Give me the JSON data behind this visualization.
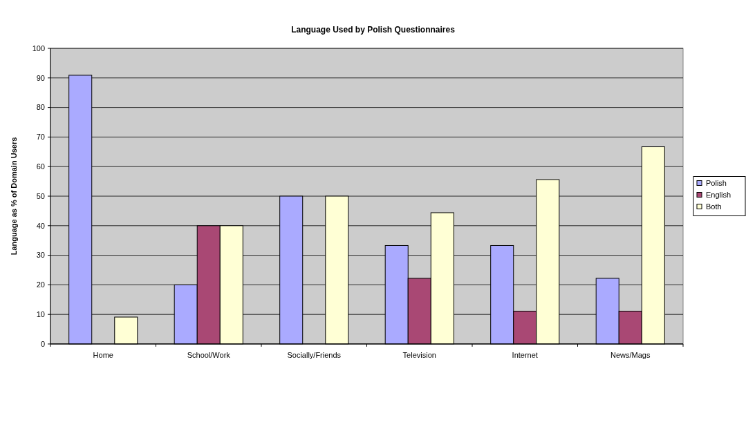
{
  "chart_data": {
    "type": "bar",
    "title": "Language Used by Polish Questionnaires",
    "ylabel": "Language as % of Domain Users",
    "categories": [
      "Home",
      "School/Work",
      "Socially/Friends",
      "Television",
      "Internet",
      "News/Mags"
    ],
    "series": [
      {
        "name": "Polish",
        "color": "#aaaaff",
        "values": [
          90.9,
          20,
          50,
          33.3,
          33.3,
          22.2
        ]
      },
      {
        "name": "English",
        "color": "#a94874",
        "values": [
          0,
          40,
          0,
          22.2,
          11.1,
          11.1
        ]
      },
      {
        "name": "Both",
        "color": "#ffffd5",
        "values": [
          9.1,
          40,
          50,
          44.4,
          55.6,
          66.7
        ]
      }
    ],
    "ylim": [
      0,
      100
    ],
    "yticks": [
      0,
      10,
      20,
      30,
      40,
      50,
      60,
      70,
      80,
      90,
      100
    ],
    "grid": "y",
    "legend": "right"
  }
}
